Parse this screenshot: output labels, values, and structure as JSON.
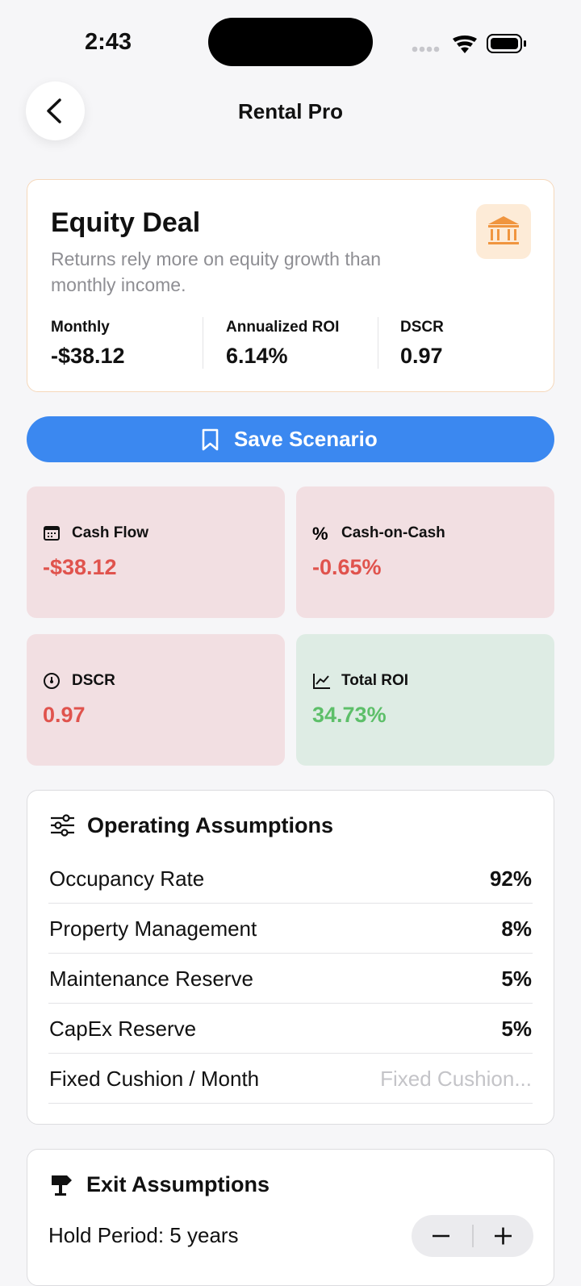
{
  "status_bar": {
    "time": "2:43"
  },
  "nav": {
    "title": "Rental Pro"
  },
  "deal_card": {
    "title": "Equity Deal",
    "description": "Returns rely more on equity growth than monthly income.",
    "stats": [
      {
        "label": "Monthly",
        "value": "-$38.12"
      },
      {
        "label": "Annualized ROI",
        "value": "6.14%"
      },
      {
        "label": "DSCR",
        "value": "0.97"
      }
    ]
  },
  "save_button": {
    "label": "Save Scenario"
  },
  "metrics": [
    {
      "label": "Cash Flow",
      "value": "-$38.12",
      "color": "#e0534d",
      "background": "#f2dfe2"
    },
    {
      "label": "Cash-on-Cash",
      "value": "-0.65%",
      "color": "#e0534d",
      "background": "#f2dfe2"
    },
    {
      "label": "DSCR",
      "value": "0.97",
      "color": "#e0534d",
      "background": "#f2dfe2"
    },
    {
      "label": "Total ROI",
      "value": "34.73%",
      "color": "#5dbf69",
      "background": "#deece4"
    }
  ],
  "operating": {
    "title": "Operating Assumptions",
    "rows": [
      {
        "label": "Occupancy Rate",
        "value": "92%"
      },
      {
        "label": "Property Management",
        "value": "8%"
      },
      {
        "label": "Maintenance Reserve",
        "value": "5%"
      },
      {
        "label": "CapEx Reserve",
        "value": "5%"
      },
      {
        "label": "Fixed Cushion / Month",
        "placeholder": "Fixed Cushion..."
      }
    ]
  },
  "exit": {
    "title": "Exit Assumptions",
    "hold_period": "Hold Period: 5 years"
  }
}
